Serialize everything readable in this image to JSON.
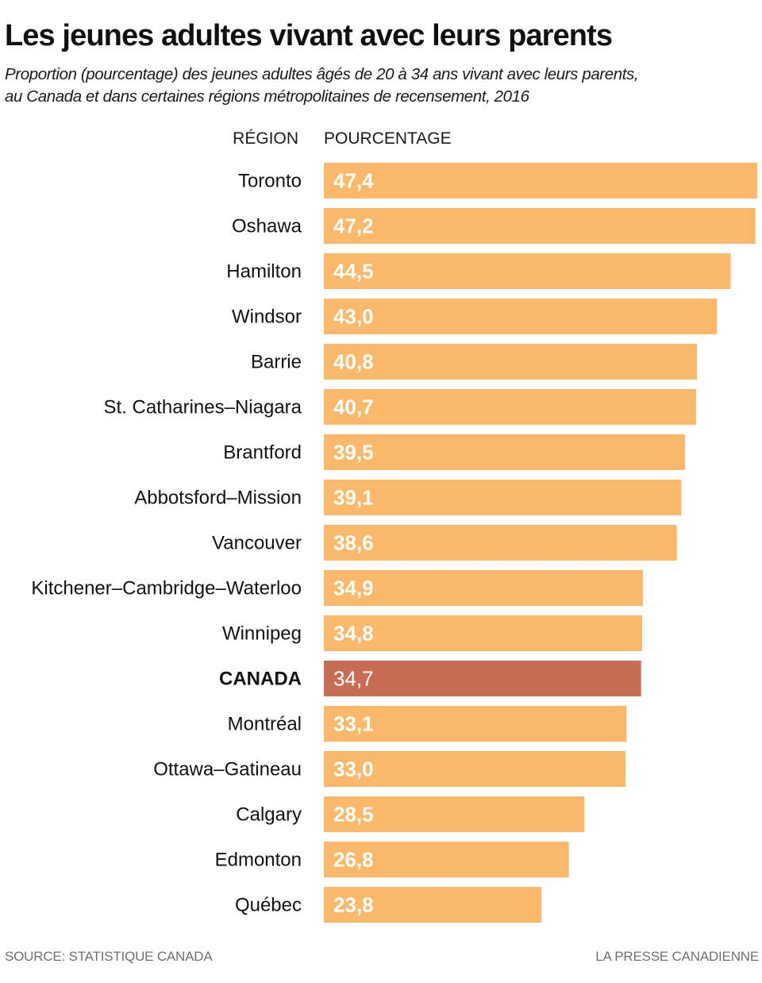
{
  "title": "Les jeunes adultes vivant avec leurs parents",
  "subtitle_lines": [
    "Proportion (pourcentage) des jeunes adultes âgés de 20 à 34 ans vivant avec leurs parents,",
    "au Canada et dans certaines régions métropolitaines de recensement, 2016"
  ],
  "source": "SOURCE: STATISTIQUE CANADA",
  "credit": "LA PRESSE CANADIENNE",
  "colors": {
    "bar": "#f9b86a",
    "highlight": "#c86d55",
    "bar_label": "#ffffff"
  },
  "chart_data": {
    "type": "bar",
    "orientation": "horizontal",
    "column_headers": {
      "category": "RÉGION",
      "value": "POURCENTAGE"
    },
    "categories": [
      "Toronto",
      "Oshawa",
      "Hamilton",
      "Windsor",
      "Barrie",
      "St. Catharines–Niagara",
      "Brantford",
      "Abbotsford–Mission",
      "Vancouver",
      "Kitchener–Cambridge–Waterloo",
      "Winnipeg",
      "CANADA",
      "Montréal",
      "Ottawa–Gatineau",
      "Calgary",
      "Edmonton",
      "Québec"
    ],
    "values": [
      47.4,
      47.2,
      44.5,
      43.0,
      40.8,
      40.7,
      39.5,
      39.1,
      38.6,
      34.9,
      34.8,
      34.7,
      33.1,
      33.0,
      28.5,
      26.8,
      23.8
    ],
    "value_labels": [
      "47,4",
      "47,2",
      "44,5",
      "43,0",
      "40,8",
      "40,7",
      "39,5",
      "39,1",
      "38,6",
      "34,9",
      "34,8",
      "34,7",
      "33,1",
      "33,0",
      "28,5",
      "26,8",
      "23,8"
    ],
    "highlight_category": "CANADA",
    "xlim": [
      0,
      47.4
    ],
    "grid": false,
    "legend": "none"
  }
}
